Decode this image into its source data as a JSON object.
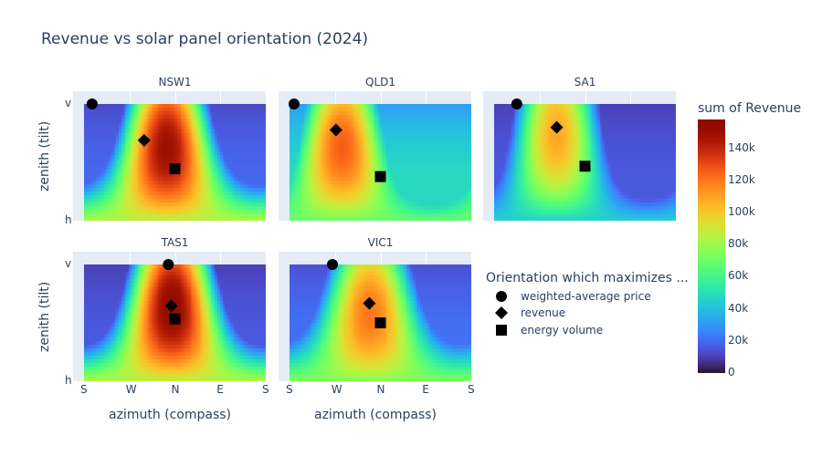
{
  "chart_data": {
    "type": "heatmap",
    "title": "Revenue vs solar panel orientation (2024)",
    "xlabel": "azimuth (compass)",
    "ylabel": "zenith (tilt)",
    "x_ticks": [
      "S",
      "W",
      "N",
      "E",
      "S"
    ],
    "x_tick_values": [
      0,
      90,
      180,
      270,
      360
    ],
    "y_ticks": [
      "v",
      "h"
    ],
    "y_tick_values": [
      90,
      0
    ],
    "xlim": [
      0,
      360
    ],
    "ylim": [
      0,
      90
    ],
    "colorbar": {
      "title": "sum of Revenue",
      "ticks": [
        "0",
        "20k",
        "40k",
        "60k",
        "80k",
        "100k",
        "120k",
        "140k"
      ],
      "tick_values": [
        0,
        20000,
        40000,
        60000,
        80000,
        100000,
        120000,
        140000
      ],
      "range": [
        0,
        158000
      ],
      "colorscale": "turbo"
    },
    "legend": {
      "title": "Orientation which maximizes ...",
      "placement": "right",
      "items": [
        {
          "label": "weighted-average price",
          "symbol": "circle"
        },
        {
          "label": "revenue",
          "symbol": "diamond"
        },
        {
          "label": "energy volume",
          "symbol": "square"
        }
      ]
    },
    "regions": [
      {
        "name": "NSW1",
        "surface": {
          "horizontal": 85000,
          "directional": 124000,
          "best_azimuth": 165,
          "floor": 18000
        },
        "optima": {
          "price": [
            16,
            90
          ],
          "revenue": [
            119,
            62
          ],
          "energy": [
            180,
            40
          ]
        }
      },
      {
        "name": "QLD1",
        "surface": {
          "horizontal": 70000,
          "directional": 105000,
          "best_azimuth": 105,
          "floor": 45000
        },
        "optima": {
          "price": [
            9,
            90
          ],
          "revenue": [
            92,
            70
          ],
          "energy": [
            180,
            34
          ]
        }
      },
      {
        "name": "SA1",
        "surface": {
          "horizontal": 45000,
          "directional": 100000,
          "best_azimuth": 125,
          "floor": 15000
        },
        "optima": {
          "price": [
            45,
            90
          ],
          "revenue": [
            124,
            72
          ],
          "energy": [
            180,
            42
          ]
        }
      },
      {
        "name": "TAS1",
        "surface": {
          "horizontal": 85000,
          "directional": 130000,
          "best_azimuth": 175,
          "floor": 15000
        },
        "optima": {
          "price": [
            167,
            90
          ],
          "revenue": [
            173,
            58
          ],
          "energy": [
            180,
            48
          ]
        }
      },
      {
        "name": "VIC1",
        "surface": {
          "horizontal": 75000,
          "directional": 95000,
          "best_azimuth": 160,
          "floor": 20000
        },
        "optima": {
          "price": [
            85,
            90
          ],
          "revenue": [
            158,
            60
          ],
          "energy": [
            180,
            45
          ]
        }
      }
    ]
  }
}
